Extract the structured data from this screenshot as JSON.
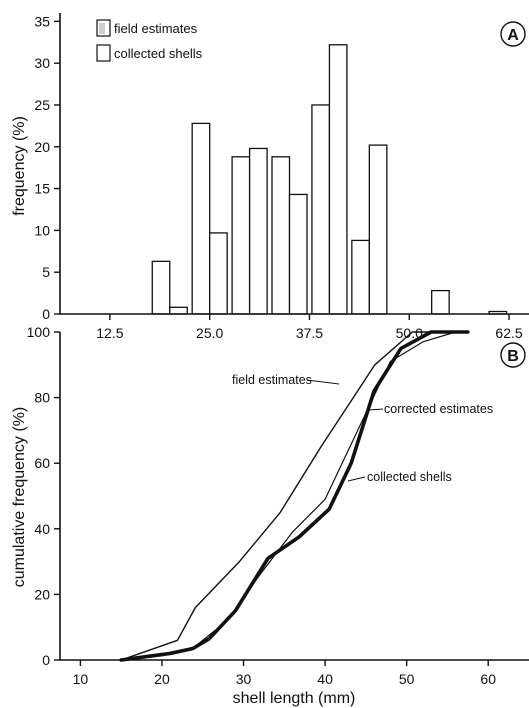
{
  "chart_data": [
    {
      "type": "bar",
      "panel_letter": "A",
      "xlabel": "",
      "ylabel": "frequency (%)",
      "ylim": [
        0,
        36
      ],
      "xlim": [
        6.25,
        65
      ],
      "x_ticks": [
        12.5,
        25.0,
        37.5,
        50.0,
        62.5
      ],
      "x_tick_labels": [
        "12.5",
        "25.0",
        "37.5",
        "50.0",
        "62.5"
      ],
      "y_ticks": [
        0,
        5,
        10,
        15,
        20,
        25,
        30,
        35
      ],
      "y_tick_labels": [
        "0",
        "5",
        "10",
        "15",
        "20",
        "25",
        "30",
        "35"
      ],
      "grid": false,
      "legend_position": "top-left",
      "series": [
        {
          "name": "field estimates",
          "x": [
            15,
            20,
            25,
            30,
            35,
            40,
            45,
            50,
            55,
            60
          ],
          "values": [
            0,
            6.3,
            22.8,
            18.8,
            18.8,
            25.0,
            8.8,
            0,
            2.8,
            0
          ]
        },
        {
          "name": "collected shells",
          "x": [
            15,
            20,
            25,
            30,
            35,
            40,
            45,
            50,
            55,
            60
          ],
          "values": [
            0,
            0.8,
            9.7,
            19.8,
            14.3,
            32.2,
            20.2,
            0,
            0,
            0.3
          ]
        }
      ]
    },
    {
      "type": "line",
      "panel_letter": "B",
      "xlabel": "shell length (mm)",
      "ylabel": "cumulative frequency (%)",
      "xlim": [
        7.5,
        65
      ],
      "ylim": [
        0,
        100
      ],
      "x_ticks": [
        10,
        20,
        30,
        40,
        50,
        60
      ],
      "x_tick_labels": [
        "10",
        "20",
        "30",
        "40",
        "50",
        "60"
      ],
      "y_ticks": [
        0,
        20,
        40,
        60,
        80,
        100
      ],
      "y_tick_labels": [
        "0",
        "20",
        "40",
        "60",
        "80",
        "100"
      ],
      "grid": false,
      "series": [
        {
          "name": "field estimates",
          "x": [
            15,
            21.9,
            24.1,
            29.5,
            34.5,
            39.5,
            46.1,
            50.7,
            52.7,
            57.3
          ],
          "y": [
            0,
            6,
            16,
            30,
            45,
            65,
            90,
            100,
            100,
            100
          ]
        },
        {
          "name": "corrected estimates",
          "x": [
            15,
            21,
            23.8,
            25.8,
            29,
            33,
            36.8,
            40.5,
            43.2,
            46,
            49.3,
            53,
            57.5
          ],
          "y": [
            0,
            2,
            3.5,
            6.5,
            15,
            31,
            37.5,
            46,
            60,
            82,
            95,
            100,
            100
          ]
        },
        {
          "name": "collected shells",
          "x": [
            15,
            20,
            24,
            28,
            32,
            36,
            40,
            44,
            48,
            52,
            56,
            57.3
          ],
          "y": [
            0,
            1.3,
            4,
            12,
            26,
            39,
            49,
            70,
            91,
            97,
            100,
            100
          ]
        }
      ]
    }
  ]
}
